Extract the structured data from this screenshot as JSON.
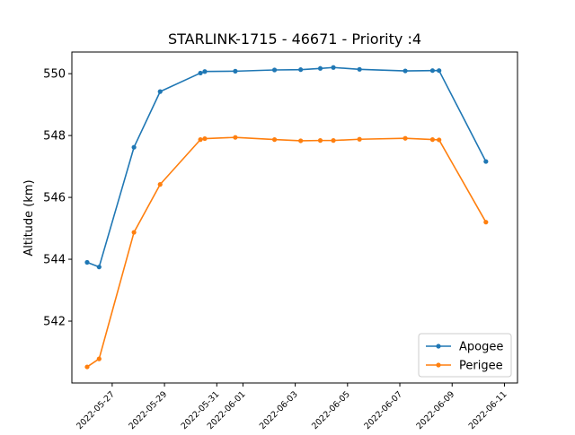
{
  "chart_data": {
    "type": "line",
    "title": "STARLINK-1715 - 46671 - Priority :4",
    "xlabel": "",
    "ylabel": "Altitude (km)",
    "ylim": [
      540.0,
      550.7
    ],
    "xlim": [
      "2022-05-25T11:00",
      "2022-06-11T12:00"
    ],
    "yticks": [
      542,
      544,
      546,
      548,
      550
    ],
    "xticks": [
      "2022-05-27",
      "2022-05-29",
      "2022-05-31",
      "2022-06-01",
      "2022-06-03",
      "2022-06-05",
      "2022-06-07",
      "2022-06-09",
      "2022-06-11"
    ],
    "legend_position": "lower-right",
    "grid": false,
    "series": [
      {
        "name": "Apogee",
        "color": "#1f77b4",
        "points": [
          [
            "2022-05-26T01:00",
            543.9
          ],
          [
            "2022-05-26T12:00",
            543.75
          ],
          [
            "2022-05-27T20:00",
            547.62
          ],
          [
            "2022-05-28T20:00",
            549.42
          ],
          [
            "2022-05-30T09:00",
            550.02
          ],
          [
            "2022-05-30T13:00",
            550.07
          ],
          [
            "2022-05-31T17:00",
            550.08
          ],
          [
            "2022-06-02T05:00",
            550.12
          ],
          [
            "2022-06-03T05:00",
            550.13
          ],
          [
            "2022-06-03T23:00",
            550.17
          ],
          [
            "2022-06-04T11:00",
            550.2
          ],
          [
            "2022-06-05T11:00",
            550.14
          ],
          [
            "2022-06-07T05:00",
            550.09
          ],
          [
            "2022-06-08T06:00",
            550.1
          ],
          [
            "2022-06-08T12:00",
            550.1
          ],
          [
            "2022-06-10T07:00",
            547.16
          ]
        ]
      },
      {
        "name": "Perigee",
        "color": "#ff7f0e",
        "points": [
          [
            "2022-05-26T01:00",
            540.52
          ],
          [
            "2022-05-26T12:00",
            540.78
          ],
          [
            "2022-05-27T20:00",
            544.87
          ],
          [
            "2022-05-28T20:00",
            546.42
          ],
          [
            "2022-05-30T09:00",
            547.87
          ],
          [
            "2022-05-30T13:00",
            547.9
          ],
          [
            "2022-05-31T17:00",
            547.94
          ],
          [
            "2022-06-02T05:00",
            547.87
          ],
          [
            "2022-06-03T05:00",
            547.83
          ],
          [
            "2022-06-03T23:00",
            547.84
          ],
          [
            "2022-06-04T11:00",
            547.84
          ],
          [
            "2022-06-05T11:00",
            547.88
          ],
          [
            "2022-06-07T05:00",
            547.91
          ],
          [
            "2022-06-08T06:00",
            547.87
          ],
          [
            "2022-06-08T12:00",
            547.86
          ],
          [
            "2022-06-10T07:00",
            545.2
          ]
        ]
      }
    ]
  }
}
